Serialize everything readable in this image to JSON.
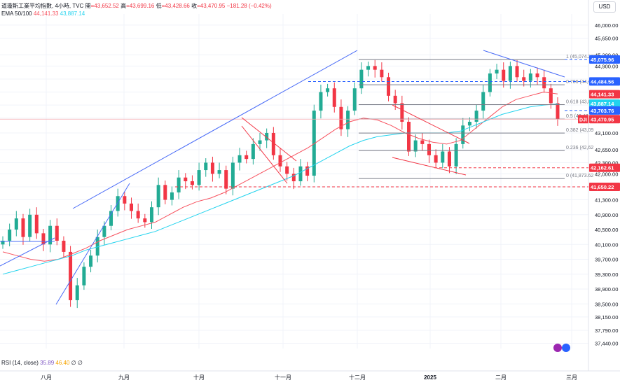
{
  "header": {
    "symbol": "道瓊斯工業平均指數, 4小時, TVC",
    "open_label": "開",
    "open": "=43,652.52",
    "high_label": "高",
    "high": "=43,699.16",
    "low_label": "低",
    "low": "=43,428.66",
    "close_label": "收",
    "close": "=43,470.95",
    "change": "−181.28 (−0.42%)"
  },
  "ema": {
    "label": "EMA 50/100",
    "ema50": "44,141.33",
    "ema100": "43,887.14"
  },
  "rsi": {
    "label": "RSI (14, close)",
    "v1": "35.89",
    "v2": "46.40",
    "v3": "∅",
    "v4": "∅"
  },
  "currency": "USD",
  "colors": {
    "ema50": "#f7525f",
    "ema100": "#22d3ee",
    "trend": "#4a6cf7",
    "bull": "#22ab94",
    "bear": "#f23645",
    "fib": "#787b86",
    "dashed_red": "#f23645",
    "dashed_blue": "#2962ff"
  },
  "chart_data": {
    "type": "candlestick",
    "x_labels": [
      "八月",
      "九月",
      "十月",
      "十一月",
      "十二月",
      "2025",
      "二月",
      "三月"
    ],
    "y_ticks": [
      37440,
      37790,
      38150,
      38500,
      38900,
      39300,
      39700,
      40100,
      40500,
      40900,
      41300,
      41650,
      42000,
      42300,
      42650,
      43100,
      43500,
      43850,
      44200,
      44550,
      44900,
      45200,
      45650,
      46000
    ],
    "ylim": [
      37300,
      46300
    ],
    "price_markers": [
      {
        "value": 45075.96,
        "text": "45,075.96",
        "color": "#2962ff"
      },
      {
        "value": 44484.56,
        "text": "44,484.56",
        "color": "#2962ff"
      },
      {
        "value": 44141.33,
        "text": "44,141.33",
        "color": "#f23645"
      },
      {
        "value": 43887.14,
        "text": "43,887.14",
        "color": "#22d3ee"
      },
      {
        "value": 43703.76,
        "text": "43,703.76",
        "color": "#2962ff"
      },
      {
        "value": 43470.95,
        "text": "43,470.95",
        "color": "#f23645",
        "tag": "DJI"
      },
      {
        "value": 42162.61,
        "text": "42,162.61",
        "color": "#f23645"
      },
      {
        "value": 41650.22,
        "text": "41,650.22",
        "color": "#f23645"
      }
    ],
    "fib_levels": [
      {
        "ratio": "1",
        "text": "1 (45,074.22)",
        "value": 45074
      },
      {
        "ratio": "0.786",
        "text": "0.786 (44,39",
        "value": 44397
      },
      {
        "ratio": "0.618",
        "text": "0.618 (43,8",
        "value": 43862
      },
      {
        "ratio": "0.5",
        "text": "0.5 (43,47",
        "value": 43474
      },
      {
        "ratio": "0.382",
        "text": "0.382 (43,09",
        "value": 43097
      },
      {
        "ratio": "0.236",
        "text": "0.236 (42,62",
        "value": 42624
      },
      {
        "ratio": "0",
        "text": "0 (41,873.62",
        "value": 41874
      }
    ],
    "series": [
      {
        "name": "EMA 50",
        "values": [
          39900,
          39800,
          39700,
          39650,
          39700,
          39850,
          40000,
          40200,
          40350,
          40500,
          40600,
          40700,
          40900,
          41100,
          41250,
          41350,
          41500,
          41700,
          41900,
          42100,
          42300,
          42500,
          42700,
          42950,
          43200,
          43400,
          43500,
          43450,
          43300,
          43100,
          42950,
          42850,
          42800,
          42900,
          43200,
          43500,
          43800,
          44000,
          44100,
          44200,
          44150
        ]
      },
      {
        "name": "EMA 100",
        "values": [
          39300,
          39400,
          39500,
          39600,
          39700,
          39800,
          39950,
          40050,
          40150,
          40250,
          40350,
          40450,
          40600,
          40750,
          40900,
          41050,
          41200,
          41350,
          41500,
          41650,
          41800,
          41950,
          42150,
          42350,
          42550,
          42750,
          42900,
          43000,
          43050,
          43100,
          43100,
          43100,
          43100,
          43150,
          43300,
          43450,
          43600,
          43700,
          43800,
          43850,
          43880
        ]
      }
    ],
    "closes": [
      40200,
      40500,
      40800,
      40300,
      40900,
      40400,
      40100,
      40600,
      40200,
      39900,
      38600,
      39000,
      39500,
      39800,
      40300,
      40600,
      41000,
      41400,
      41200,
      41000,
      40800,
      40700,
      41100,
      41700,
      41300,
      41500,
      41900,
      41800,
      41700,
      42100,
      42300,
      42000,
      42100,
      41600,
      42300,
      42500,
      42400,
      42800,
      42900,
      43100,
      42500,
      42200,
      42000,
      41800,
      42200,
      41950,
      43700,
      44200,
      44300,
      43800,
      43200,
      43700,
      44300,
      44800,
      44900,
      44800,
      44600,
      44100,
      43900,
      43400,
      42600,
      42900,
      42800,
      42500,
      42300,
      42600,
      42200,
      42800,
      43300,
      43400,
      43700,
      44200,
      44700,
      44800,
      44500,
      44900,
      44600,
      44500,
      44700,
      44600,
      44300,
      43900,
      43470
    ]
  }
}
